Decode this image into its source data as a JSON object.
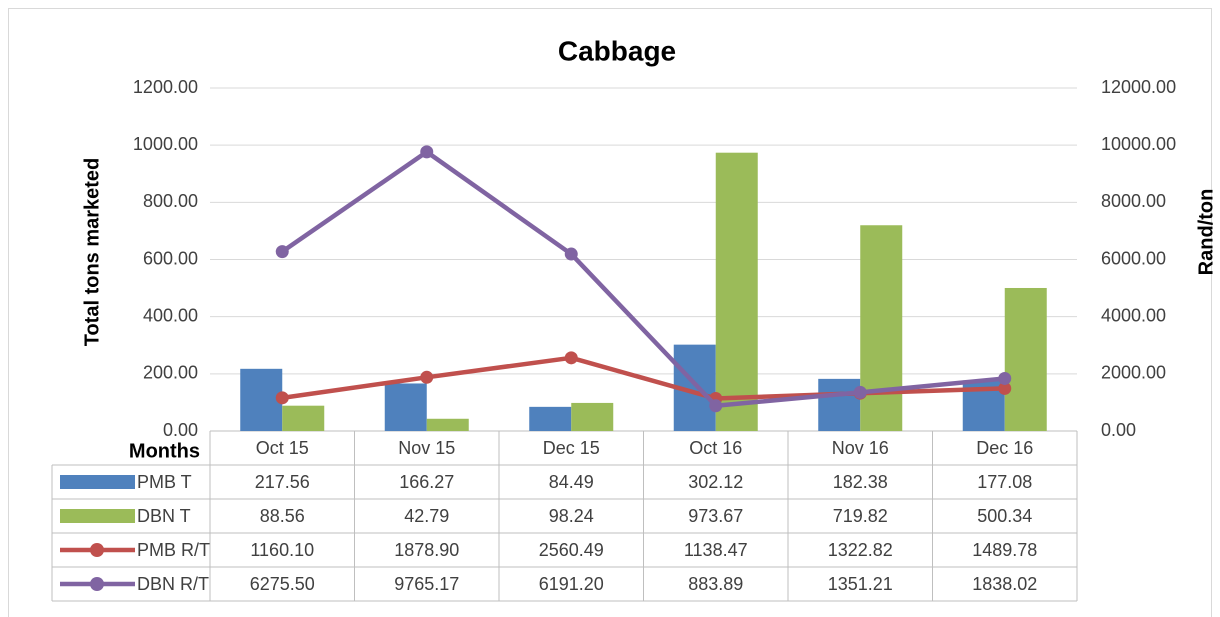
{
  "chart_data": {
    "type": "combo",
    "title": "Cabbage",
    "xlabel": "Months",
    "ylabel": "Total tons marketed",
    "y2label": "Rand/ton",
    "categories": [
      "Oct 15",
      "Nov 15",
      "Dec 15",
      "Oct 16",
      "Nov 16",
      "Dec 16"
    ],
    "grid": true,
    "ylim": [
      0,
      1200
    ],
    "yticks": [
      {
        "value": 0,
        "label": "0.00"
      },
      {
        "value": 200,
        "label": "200.00"
      },
      {
        "value": 400,
        "label": "400.00"
      },
      {
        "value": 600,
        "label": "600.00"
      },
      {
        "value": 800,
        "label": "800.00"
      },
      {
        "value": 1000,
        "label": "1000.00"
      },
      {
        "value": 1200,
        "label": "1200.00"
      }
    ],
    "y2lim": [
      0,
      12000
    ],
    "y2ticks": [
      {
        "value": 0,
        "label": "0.00"
      },
      {
        "value": 2000,
        "label": "2000.00"
      },
      {
        "value": 4000,
        "label": "4000.00"
      },
      {
        "value": 6000,
        "label": "6000.00"
      },
      {
        "value": 8000,
        "label": "8000.00"
      },
      {
        "value": 10000,
        "label": "10000.00"
      },
      {
        "value": 12000,
        "label": "12000.00"
      }
    ],
    "series": [
      {
        "name": "PMB T",
        "type": "bar",
        "color": "#4f81bd",
        "values": [
          217.56,
          166.27,
          84.49,
          302.12,
          182.38,
          177.08
        ],
        "value_labels": [
          "217.56",
          "166.27",
          "84.49",
          "302.12",
          "182.38",
          "177.08"
        ]
      },
      {
        "name": "DBN T",
        "type": "bar",
        "color": "#9bbb59",
        "values": [
          88.56,
          42.79,
          98.24,
          973.67,
          719.82,
          500.34
        ],
        "value_labels": [
          "88.56",
          "42.79",
          "98.24",
          "973.67",
          "719.82",
          "500.34"
        ]
      },
      {
        "name": "PMB R/T",
        "type": "line",
        "axis": "y2",
        "color": "#c0504d",
        "values": [
          1160.1,
          1878.9,
          2560.49,
          1138.47,
          1322.82,
          1489.78
        ],
        "value_labels": [
          "1160.10",
          "1878.90",
          "2560.49",
          "1138.47",
          "1322.82",
          "1489.78"
        ]
      },
      {
        "name": "DBN R/T",
        "type": "line",
        "axis": "y2",
        "color": "#8064a2",
        "values": [
          6275.5,
          9765.17,
          6191.2,
          883.89,
          1351.21,
          1838.02
        ],
        "value_labels": [
          "6275.50",
          "9765.17",
          "6191.20",
          "883.89",
          "1351.21",
          "1838.02"
        ]
      }
    ]
  }
}
